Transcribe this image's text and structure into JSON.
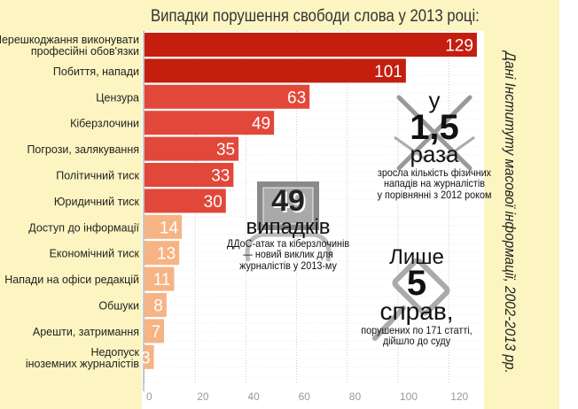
{
  "chart_data": {
    "type": "bar",
    "orientation": "horizontal",
    "title": "Випадки порушення свободи слова у 2013 році:",
    "categories": [
      "Перешкоджання виконувати\nпрофесійні обов'язки",
      "Побиття, напади",
      "Цензура",
      "Кіберзлочини",
      "Погрози, залякування",
      "Політичний тиск",
      "Юридичний тиск",
      "Доступ до інформації",
      "Економічний тиск",
      "Напади на офіси редакцій",
      "Обшуки",
      "Арешти, затримання",
      "Недопуск\nіноземних журналістів"
    ],
    "values": [
      129,
      101,
      63,
      49,
      35,
      33,
      30,
      14,
      13,
      11,
      8,
      7,
      3
    ],
    "xlim": [
      0,
      130
    ],
    "xticks": [
      0,
      20,
      40,
      60,
      80,
      100,
      120
    ],
    "grid": true,
    "colors": {
      "dark": "#c41e0e",
      "mid": "#e2483a",
      "light": "#f6b384",
      "bg": "#fcf5c2"
    }
  },
  "side_note": "Дані Інституту масової інформації, 2002-2013 рр.",
  "annotations": {
    "growth": {
      "pre": "у",
      "number": "1,5",
      "unit": "раза",
      "text1": "зросла кількість фізичних",
      "text2": "нападів на журналістів",
      "text3": "у порівнянні з 2012 роком"
    },
    "ddos": {
      "number": "49",
      "unit": "випадків",
      "text1": "ДДоС-атак та кіберзлочинів",
      "text2": "— новий виклик для",
      "text3": "журналістів у 2013-му"
    },
    "court": {
      "pre": "Лише",
      "number": "5",
      "unit": "справ,",
      "text1": "порушених по 171 статті,",
      "text2": "дійшло до суду"
    }
  }
}
